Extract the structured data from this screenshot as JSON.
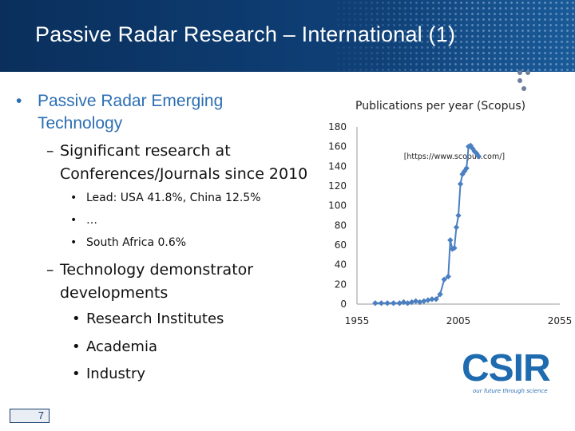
{
  "slide": {
    "title": "Passive Radar Research – International (1)",
    "page_number": "7",
    "bullets": {
      "b1": "Passive Radar Emerging Technology",
      "b1_symbol": "•",
      "dash": "–",
      "b1_sub1": "Significant research at Conferences/Journals since 2010",
      "lead": "Lead: USA 41.8%, China 12.5%",
      "ellipsis": "…",
      "sa": "South Africa 0.6%",
      "b1_sub2": "Technology demonstrator developments",
      "inst": "Research Institutes",
      "academia": "Academia",
      "industry": "Industry",
      "sub_bullet": "•"
    },
    "logo": {
      "word": "CSIR",
      "tagline": "our future through science"
    }
  },
  "chart_data": {
    "type": "line",
    "title": "Publications per year (Scopus)",
    "annotation": "[https://www.scopus.com/]",
    "xlim": [
      1955,
      2055
    ],
    "ylim": [
      0,
      180
    ],
    "x_ticks": [
      "1955",
      "2005",
      "2055"
    ],
    "y_ticks": [
      "180",
      "160",
      "140",
      "120",
      "100",
      "80",
      "60",
      "40",
      "20",
      "0"
    ],
    "series": [
      {
        "name": "Publications",
        "x": [
          1964,
          1967,
          1970,
          1973,
          1976,
          1978,
          1980,
          1982,
          1984,
          1986,
          1988,
          1990,
          1992,
          1994,
          1996,
          1998,
          2000,
          2001,
          2002,
          2003,
          2004,
          2005,
          2006,
          2007,
          2008,
          2009,
          2010,
          2011,
          2012,
          2013,
          2014,
          2015
        ],
        "y": [
          1,
          1,
          1,
          1,
          1,
          2,
          1,
          2,
          3,
          2,
          3,
          4,
          5,
          5,
          10,
          25,
          28,
          65,
          56,
          57,
          78,
          90,
          122,
          132,
          135,
          138,
          160,
          161,
          158,
          155,
          153,
          150
        ]
      }
    ],
    "color": "#4a7fc1"
  }
}
